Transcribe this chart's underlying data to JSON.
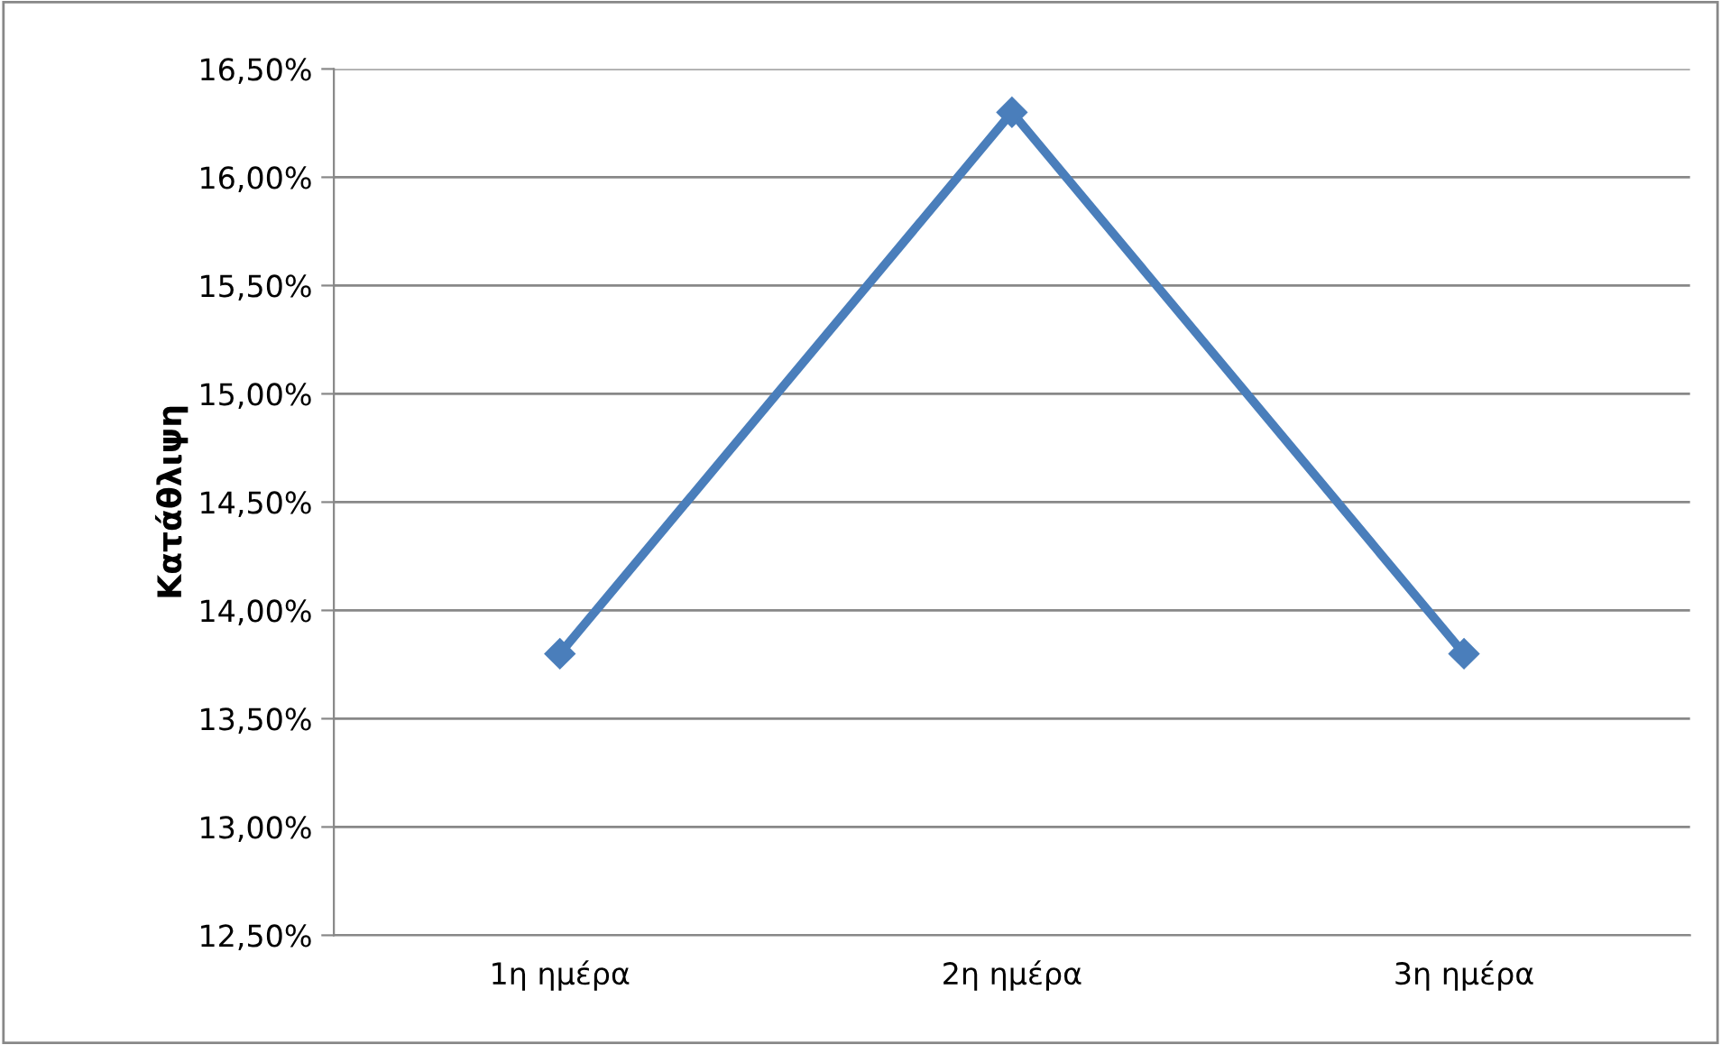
{
  "chart_data": {
    "type": "line",
    "ylabel": "Κατάθλιψη",
    "categories": [
      "1η ημέρα",
      "2η ημέρα",
      "3η ημέρα"
    ],
    "series": [
      {
        "color": "#4a7ebb",
        "values": [
          13.8,
          16.3,
          13.8
        ]
      }
    ],
    "ylim": [
      12.5,
      16.5
    ],
    "yticks": [
      {
        "value": 12.5,
        "label": "12,50%"
      },
      {
        "value": 13.0,
        "label": "13,00%"
      },
      {
        "value": 13.5,
        "label": "13,50%"
      },
      {
        "value": 14.0,
        "label": "14,00%"
      },
      {
        "value": 14.5,
        "label": "14,50%"
      },
      {
        "value": 15.0,
        "label": "15,00%"
      },
      {
        "value": 15.5,
        "label": "15,50%"
      },
      {
        "value": 16.0,
        "label": "16,00%"
      },
      {
        "value": 16.5,
        "label": "16,50%"
      }
    ],
    "grid": "y",
    "marker": "diamond",
    "line_style": "solid",
    "legend": false
  }
}
